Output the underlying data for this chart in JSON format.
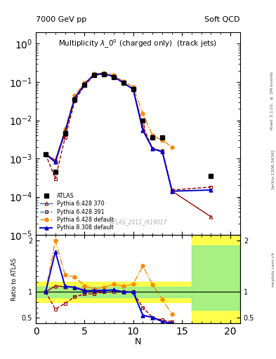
{
  "title_top_left": "7000 GeV pp",
  "title_top_right": "Soft QCD",
  "plot_title": "Multiplicity $\\lambda\\_0^0$ (charged only)  (track jets)",
  "watermark": "ATLAS_2011_I919017",
  "N_atlas": [
    1,
    2,
    3,
    4,
    5,
    6,
    7,
    8,
    9,
    10,
    11,
    12,
    13,
    18
  ],
  "y_atlas": [
    0.0013,
    0.00045,
    0.0045,
    0.035,
    0.085,
    0.155,
    0.16,
    0.135,
    0.095,
    0.065,
    0.01,
    0.0035,
    0.0035,
    0.00035
  ],
  "N_p6_370": [
    1,
    2,
    3,
    4,
    5,
    6,
    7,
    8,
    9,
    10,
    11,
    12,
    13,
    14,
    18
  ],
  "y_p6_370": [
    0.0013,
    0.0009,
    0.005,
    0.038,
    0.088,
    0.155,
    0.165,
    0.14,
    0.095,
    0.065,
    0.0055,
    0.0018,
    0.0015,
    0.00014,
    3e-05
  ],
  "N_p6_391": [
    1,
    2,
    3,
    4,
    5,
    6,
    7,
    8,
    9,
    10,
    11,
    12,
    13,
    14,
    18
  ],
  "y_p6_391": [
    0.0013,
    0.0003,
    0.0035,
    0.032,
    0.082,
    0.15,
    0.16,
    0.135,
    0.095,
    0.065,
    0.007,
    0.0018,
    0.0016,
    0.00015,
    0.00018
  ],
  "N_p6_def": [
    1,
    2,
    3,
    4,
    5,
    6,
    7,
    8,
    9,
    10,
    11,
    12,
    13,
    14
  ],
  "y_p6_def": [
    0.0013,
    0.0009,
    0.006,
    0.045,
    0.095,
    0.165,
    0.175,
    0.155,
    0.105,
    0.075,
    0.015,
    0.004,
    0.003,
    0.002
  ],
  "N_p8_def": [
    1,
    2,
    3,
    4,
    5,
    6,
    7,
    8,
    9,
    10,
    11,
    12,
    13,
    14,
    18
  ],
  "y_p8_def": [
    0.0013,
    0.0008,
    0.005,
    0.038,
    0.087,
    0.16,
    0.165,
    0.14,
    0.095,
    0.065,
    0.0055,
    0.0018,
    0.0015,
    0.00014,
    0.00015
  ],
  "color_atlas": "#000000",
  "color_p6_370": "#990000",
  "color_p6_391": "#990000",
  "color_p6_def": "#FF8800",
  "color_p8_def": "#0000CC",
  "ratio_N": [
    1,
    2,
    3,
    4,
    5,
    6,
    7,
    8,
    9,
    10,
    11,
    12,
    13,
    14
  ],
  "ratio_p6_370": [
    1.0,
    1.12,
    1.1,
    1.09,
    1.04,
    1.0,
    1.03,
    1.04,
    1.0,
    1.0,
    0.55,
    0.51,
    0.43,
    0.4
  ],
  "ratio_p6_391": [
    1.0,
    0.67,
    0.78,
    0.91,
    0.96,
    0.97,
    1.0,
    1.0,
    1.0,
    1.0,
    0.7,
    0.51,
    0.46,
    0.43
  ],
  "ratio_p6_def": [
    1.0,
    2.0,
    1.33,
    1.29,
    1.12,
    1.06,
    1.09,
    1.15,
    1.11,
    1.15,
    1.5,
    1.14,
    0.86,
    0.57
  ],
  "ratio_p8_def": [
    1.0,
    1.78,
    1.11,
    1.09,
    1.02,
    1.03,
    1.03,
    1.04,
    1.0,
    1.0,
    0.55,
    0.51,
    0.43,
    0.4
  ],
  "band_yellow_x1": 0,
  "band_yellow_x2": 16,
  "band_yellow_y1": 0.8,
  "band_yellow_y2": 1.2,
  "band_green_x1": 0,
  "band_green_x2": 16,
  "band_green_y1": 0.9,
  "band_green_y2": 1.1,
  "band_yellow2_x1": 16,
  "band_yellow2_x2": 21,
  "band_yellow2_y1": 0.4,
  "band_yellow2_y2": 2.1,
  "band_green2_x1": 16,
  "band_green2_x2": 21,
  "band_green2_y1": 0.65,
  "band_green2_y2": 1.9,
  "xlim": [
    0,
    21
  ],
  "ylim_main": [
    1e-05,
    2.0
  ],
  "ylim_ratio": [
    0.4,
    2.1
  ]
}
